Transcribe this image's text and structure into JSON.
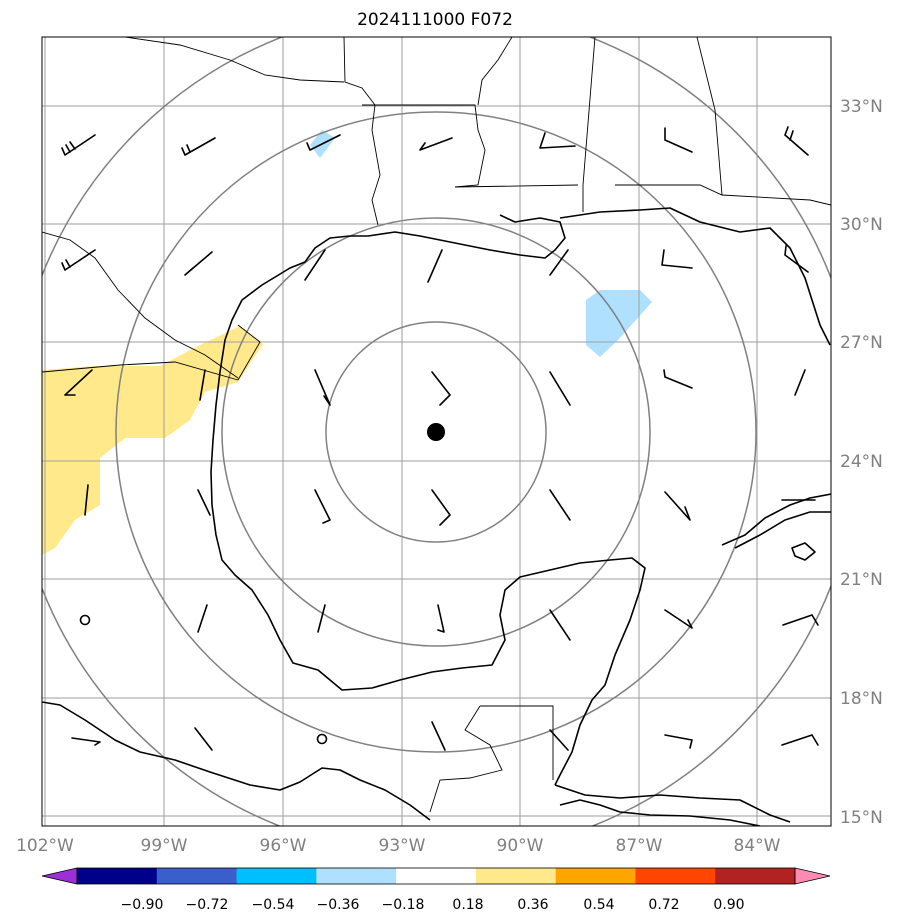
{
  "title": "2024111000 F072",
  "map": {
    "lon_labels": [
      "102°W",
      "99°W",
      "96°W",
      "93°W",
      "90°W",
      "87°W",
      "84°W"
    ],
    "lat_labels": [
      "33°N",
      "30°N",
      "27°N",
      "24°N",
      "21°N",
      "18°N",
      "15°N"
    ],
    "center_marker": "storm-center-dot"
  },
  "colorbar": {
    "labels": [
      "−0.90",
      "−0.72",
      "−0.54",
      "−0.36",
      "−0.18",
      "0.18",
      "0.36",
      "0.54",
      "0.72",
      "0.90"
    ],
    "colors": [
      "#9b30d9",
      "#00008b",
      "#3a5fcd",
      "#00bfff",
      "#b0e0ff",
      "#ffffff",
      "#ffe98a",
      "#ffa500",
      "#ff4500",
      "#b22222",
      "#ff8ab4"
    ]
  }
}
